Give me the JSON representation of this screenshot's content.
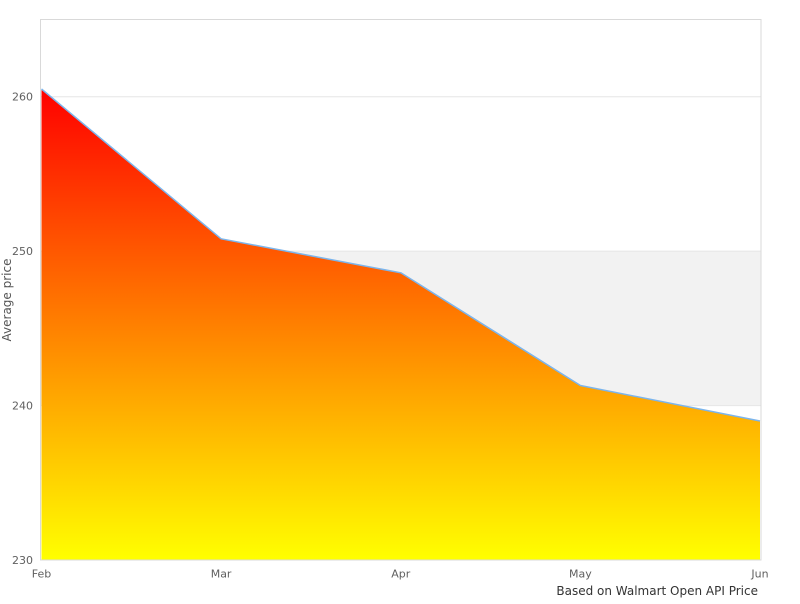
{
  "chart_data": {
    "type": "area",
    "title": "",
    "categories": [
      "Feb",
      "Mar",
      "Apr",
      "May",
      "Jun"
    ],
    "values": [
      260.5,
      250.8,
      248.6,
      241.3,
      239.0
    ],
    "ylabel": "Average price",
    "xlabel": "",
    "caption": "Based on Walmart Open API Price",
    "ylim": [
      230,
      265
    ],
    "yticks": [
      230,
      240,
      250,
      260
    ],
    "ytick_labels": [
      "230",
      "240",
      "250",
      "260"
    ],
    "grid": true,
    "legend": "none",
    "alternate_band": {
      "from": 240,
      "to": 250
    },
    "colors": {
      "line": "#7cb5ec",
      "gradient_top": "#ff0000",
      "gradient_bottom": "#ffff00",
      "band": "#f2f2f2",
      "gridline": "#e6e6e6",
      "border": "#d9d9d9",
      "tick_text": "#606060",
      "axis_title_text": "#555555",
      "caption_text": "#333333",
      "background": "#ffffff"
    }
  }
}
